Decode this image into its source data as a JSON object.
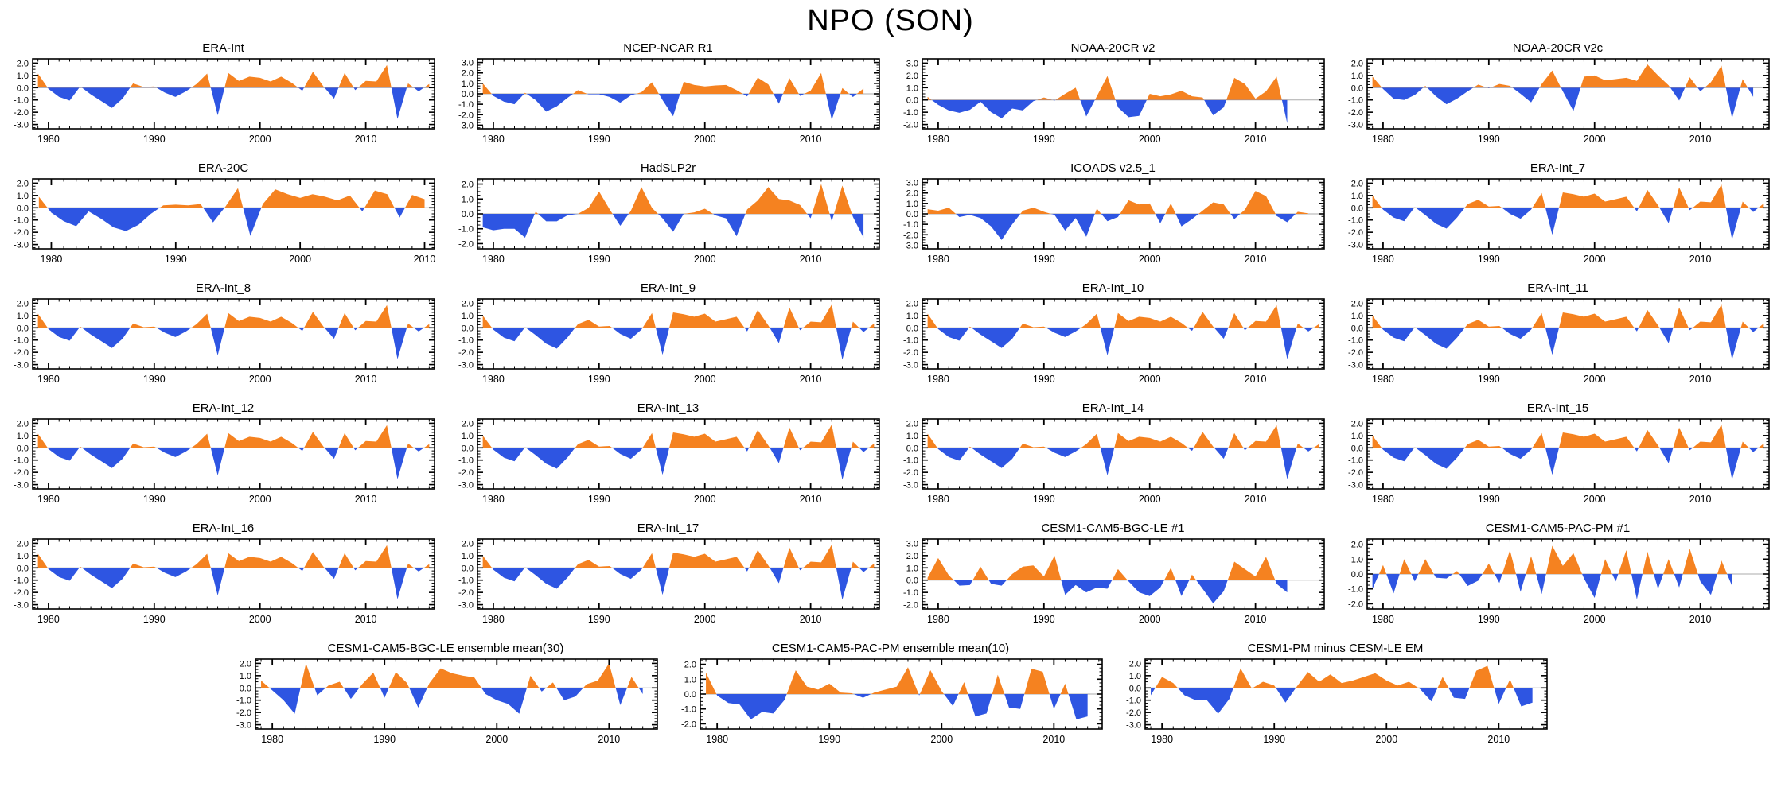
{
  "page": {
    "title": "NPO (SON)"
  },
  "colors": {
    "positive_fill": "#F58220",
    "negative_fill": "#2E55E2",
    "axis": "#000000",
    "zero_line": "#ABABAB"
  },
  "axis_defaults": {
    "x_start": 1978.5,
    "x_ticks": [
      1980,
      1990,
      2000,
      2010
    ],
    "x_minor_step": 1,
    "y_minor_step": 0.25,
    "start_year": 1979
  },
  "chart_data": [
    {
      "type": "area",
      "title": "ERA-Int",
      "x_end": 2016.5,
      "y_bot": -3.35,
      "y_top": 2.35,
      "yticks": [
        2,
        1,
        0,
        -1,
        -2,
        -3
      ],
      "values": [
        1.15,
        -0.1,
        -0.75,
        -1.05,
        0.1,
        -0.55,
        -1.1,
        -1.65,
        -0.9,
        0.35,
        0.05,
        0.1,
        -0.4,
        -0.75,
        -0.3,
        0.3,
        1.15,
        -2.25,
        1.2,
        0.55,
        0.9,
        0.8,
        0.5,
        0.9,
        0.4,
        -0.25,
        1.3,
        0.1,
        -0.9,
        1.2,
        -0.2,
        0.55,
        0.5,
        1.85,
        -2.55,
        0.35,
        -0.3,
        0.3
      ]
    },
    {
      "type": "area",
      "title": "NCEP-NCAR R1",
      "x_end": 2016.5,
      "y_bot": -3.35,
      "y_top": 3.35,
      "yticks": [
        3,
        2,
        1,
        0,
        -1,
        -2,
        -3
      ],
      "values": [
        1.0,
        -0.2,
        -0.75,
        -1.0,
        0.1,
        -0.6,
        -1.7,
        -1.2,
        -0.4,
        0.35,
        -0.05,
        -0.05,
        -0.3,
        -0.85,
        -0.15,
        0.15,
        1.1,
        -0.6,
        -2.15,
        1.15,
        0.85,
        0.7,
        0.8,
        0.85,
        0.35,
        -0.25,
        1.55,
        0.9,
        -0.95,
        1.5,
        -0.2,
        0.3,
        2.0,
        -2.5,
        0.55,
        -0.3,
        0.5
      ]
    },
    {
      "type": "area",
      "title": "NOAA-20CR v2",
      "x_end": 2016.5,
      "y_bot": -2.35,
      "y_top": 3.35,
      "yticks": [
        3,
        2,
        1,
        0,
        -1,
        -2
      ],
      "values": [
        0.25,
        -0.4,
        -0.85,
        -1.05,
        -0.8,
        -0.15,
        -1.0,
        -1.5,
        -0.7,
        -0.85,
        -0.1,
        0.2,
        -0.05,
        0.5,
        1.0,
        -1.35,
        0.3,
        1.95,
        -0.6,
        -1.4,
        -1.3,
        0.5,
        0.3,
        0.45,
        0.75,
        0.3,
        0.2,
        -1.25,
        -0.6,
        1.8,
        1.3,
        0.1,
        0.7,
        1.9,
        -1.9
      ]
    },
    {
      "type": "area",
      "title": "NOAA-20CR v2c",
      "x_end": 2016.5,
      "y_bot": -3.35,
      "y_top": 2.35,
      "yticks": [
        2,
        1,
        0,
        -1,
        -2,
        -3
      ],
      "values": [
        0.9,
        -0.1,
        -0.9,
        -1.0,
        -0.6,
        0.15,
        -0.7,
        -1.35,
        -0.9,
        -0.3,
        0.25,
        -0.05,
        0.3,
        0.15,
        -0.5,
        -1.2,
        0.3,
        1.4,
        -0.3,
        -1.9,
        0.9,
        1.0,
        0.6,
        0.7,
        0.8,
        0.55,
        1.9,
        1.0,
        0.2,
        -1.05,
        0.85,
        -0.3,
        0.45,
        1.8,
        -2.5,
        0.7,
        -0.75
      ]
    },
    {
      "type": "area",
      "title": "ERA-20C",
      "x_end": 2010.8,
      "y_bot": -3.35,
      "y_top": 2.35,
      "yticks": [
        2,
        1,
        0,
        -1,
        -2,
        -3
      ],
      "values": [
        0.9,
        -0.4,
        -1.1,
        -1.5,
        -0.3,
        -0.9,
        -1.6,
        -1.9,
        -1.4,
        -0.5,
        0.2,
        0.25,
        0.2,
        0.3,
        -1.2,
        0.1,
        1.6,
        -2.3,
        0.3,
        1.5,
        1.1,
        0.8,
        1.1,
        0.9,
        0.6,
        1.0,
        -0.3,
        1.4,
        1.1,
        -0.8,
        1.05,
        0.7
      ]
    },
    {
      "type": "area",
      "title": "HadSLP2r",
      "x_end": 2016.5,
      "y_bot": -2.35,
      "y_top": 2.35,
      "yticks": [
        2,
        1,
        0,
        -1,
        -2
      ],
      "values": [
        -0.9,
        -1.1,
        -1.0,
        -1.0,
        -1.6,
        0.15,
        -0.5,
        -0.5,
        -0.1,
        0.0,
        0.4,
        1.5,
        0.3,
        -0.8,
        0.2,
        1.8,
        0.4,
        -0.3,
        -1.2,
        0.0,
        0.1,
        0.35,
        -0.1,
        -0.3,
        -1.5,
        0.3,
        0.9,
        1.8,
        1.0,
        0.9,
        0.6,
        -0.3,
        2.0,
        -0.5,
        1.9,
        -0.2,
        -1.6
      ]
    },
    {
      "type": "area",
      "title": "ICOADS v2.5_1",
      "x_end": 2016.5,
      "y_bot": -3.35,
      "y_top": 3.35,
      "yticks": [
        3,
        2,
        1,
        0,
        -1,
        -2,
        -3
      ],
      "values": [
        0.45,
        0.3,
        0.6,
        -0.3,
        -0.1,
        -0.4,
        -1.2,
        -2.5,
        -1.0,
        0.3,
        0.6,
        0.2,
        -0.1,
        -1.6,
        -0.4,
        -2.2,
        0.5,
        -0.7,
        -0.3,
        1.3,
        0.9,
        1.0,
        -0.9,
        1.0,
        -1.2,
        -0.5,
        0.3,
        1.1,
        0.9,
        -0.5,
        0.4,
        2.2,
        1.7,
        -0.2,
        -0.8,
        0.2,
        0.05
      ]
    },
    {
      "type": "area",
      "title": "ERA-Int_7",
      "x_end": 2016.5,
      "y_bot": -3.35,
      "y_top": 2.35,
      "yticks": [
        2,
        1,
        0,
        -1,
        -2,
        -3
      ],
      "values": [
        1.0,
        -0.15,
        -0.8,
        -1.1,
        0.05,
        -0.6,
        -1.3,
        -1.7,
        -0.8,
        0.3,
        0.65,
        0.1,
        0.15,
        -0.5,
        -0.9,
        -0.15,
        1.2,
        -2.2,
        1.25,
        1.1,
        0.9,
        1.15,
        0.5,
        0.7,
        0.9,
        -0.3,
        1.45,
        0.2,
        -1.25,
        1.65,
        -0.2,
        0.5,
        0.45,
        1.9,
        -2.6,
        0.5,
        -0.35,
        0.35
      ]
    },
    {
      "type": "area",
      "title": "ERA-Int_8",
      "x_end": 2016.5,
      "y_bot": -3.35,
      "y_top": 2.35,
      "yticks": [
        2,
        1,
        0,
        -1,
        -2,
        -3
      ],
      "values": [
        1.15,
        -0.1,
        -0.75,
        -1.05,
        0.1,
        -0.55,
        -1.1,
        -1.65,
        -0.9,
        0.35,
        0.05,
        0.1,
        -0.4,
        -0.75,
        -0.3,
        0.3,
        1.15,
        -2.25,
        1.2,
        0.55,
        0.9,
        0.8,
        0.5,
        0.9,
        0.4,
        -0.25,
        1.3,
        0.1,
        -0.9,
        1.2,
        -0.2,
        0.55,
        0.5,
        1.85,
        -2.55,
        0.35,
        -0.3,
        0.3
      ]
    },
    {
      "type": "area",
      "title": "ERA-Int_9",
      "x_end": 2016.5,
      "y_bot": -3.35,
      "y_top": 2.35,
      "yticks": [
        2,
        1,
        0,
        -1,
        -2,
        -3
      ],
      "values": [
        1.0,
        -0.15,
        -0.8,
        -1.1,
        0.05,
        -0.6,
        -1.3,
        -1.7,
        -0.8,
        0.3,
        0.65,
        0.1,
        0.15,
        -0.5,
        -0.9,
        -0.15,
        1.2,
        -2.2,
        1.25,
        1.1,
        0.9,
        1.15,
        0.5,
        0.7,
        0.9,
        -0.3,
        1.45,
        0.2,
        -1.25,
        1.65,
        -0.2,
        0.5,
        0.45,
        1.9,
        -2.6,
        0.5,
        -0.35,
        0.35
      ]
    },
    {
      "type": "area",
      "title": "ERA-Int_10",
      "x_end": 2016.5,
      "y_bot": -3.35,
      "y_top": 2.35,
      "yticks": [
        2,
        1,
        0,
        -1,
        -2,
        -3
      ],
      "values": [
        1.15,
        -0.1,
        -0.75,
        -1.05,
        0.1,
        -0.55,
        -1.1,
        -1.65,
        -0.9,
        0.35,
        0.05,
        0.1,
        -0.4,
        -0.75,
        -0.3,
        0.3,
        1.15,
        -2.25,
        1.2,
        0.55,
        0.9,
        0.8,
        0.5,
        0.9,
        0.4,
        -0.25,
        1.3,
        0.1,
        -0.9,
        1.2,
        -0.2,
        0.55,
        0.5,
        1.85,
        -2.55,
        0.35,
        -0.3,
        0.3
      ]
    },
    {
      "type": "area",
      "title": "ERA-Int_11",
      "x_end": 2016.5,
      "y_bot": -3.35,
      "y_top": 2.35,
      "yticks": [
        2,
        1,
        0,
        -1,
        -2,
        -3
      ],
      "values": [
        1.0,
        -0.15,
        -0.8,
        -1.1,
        0.05,
        -0.6,
        -1.3,
        -1.7,
        -0.8,
        0.3,
        0.65,
        0.1,
        0.15,
        -0.5,
        -0.9,
        -0.15,
        1.2,
        -2.2,
        1.25,
        1.1,
        0.9,
        1.15,
        0.5,
        0.7,
        0.9,
        -0.3,
        1.45,
        0.2,
        -1.25,
        1.65,
        -0.2,
        0.5,
        0.45,
        1.9,
        -2.6,
        0.5,
        -0.35,
        0.35
      ]
    },
    {
      "type": "area",
      "title": "ERA-Int_12",
      "x_end": 2016.5,
      "y_bot": -3.35,
      "y_top": 2.35,
      "yticks": [
        2,
        1,
        0,
        -1,
        -2,
        -3
      ],
      "values": [
        1.15,
        -0.1,
        -0.75,
        -1.05,
        0.1,
        -0.55,
        -1.1,
        -1.65,
        -0.9,
        0.35,
        0.05,
        0.1,
        -0.4,
        -0.75,
        -0.3,
        0.3,
        1.15,
        -2.25,
        1.2,
        0.55,
        0.9,
        0.8,
        0.5,
        0.9,
        0.4,
        -0.25,
        1.3,
        0.1,
        -0.9,
        1.2,
        -0.2,
        0.55,
        0.5,
        1.85,
        -2.55,
        0.35,
        -0.3,
        0.3
      ]
    },
    {
      "type": "area",
      "title": "ERA-Int_13",
      "x_end": 2016.5,
      "y_bot": -3.35,
      "y_top": 2.35,
      "yticks": [
        2,
        1,
        0,
        -1,
        -2,
        -3
      ],
      "values": [
        1.0,
        -0.15,
        -0.8,
        -1.1,
        0.05,
        -0.6,
        -1.3,
        -1.7,
        -0.8,
        0.3,
        0.65,
        0.1,
        0.15,
        -0.5,
        -0.9,
        -0.15,
        1.2,
        -2.2,
        1.25,
        1.1,
        0.9,
        1.15,
        0.5,
        0.7,
        0.9,
        -0.3,
        1.45,
        0.2,
        -1.25,
        1.65,
        -0.2,
        0.5,
        0.45,
        1.9,
        -2.6,
        0.5,
        -0.35,
        0.35
      ]
    },
    {
      "type": "area",
      "title": "ERA-Int_14",
      "x_end": 2016.5,
      "y_bot": -3.35,
      "y_top": 2.35,
      "yticks": [
        2,
        1,
        0,
        -1,
        -2,
        -3
      ],
      "values": [
        1.15,
        -0.1,
        -0.75,
        -1.05,
        0.1,
        -0.55,
        -1.1,
        -1.65,
        -0.9,
        0.35,
        0.05,
        0.1,
        -0.4,
        -0.75,
        -0.3,
        0.3,
        1.15,
        -2.25,
        1.2,
        0.55,
        0.9,
        0.8,
        0.5,
        0.9,
        0.4,
        -0.25,
        1.3,
        0.1,
        -0.9,
        1.2,
        -0.2,
        0.55,
        0.5,
        1.85,
        -2.55,
        0.35,
        -0.3,
        0.3
      ]
    },
    {
      "type": "area",
      "title": "ERA-Int_15",
      "x_end": 2016.5,
      "y_bot": -3.35,
      "y_top": 2.35,
      "yticks": [
        2,
        1,
        0,
        -1,
        -2,
        -3
      ],
      "values": [
        1.0,
        -0.15,
        -0.8,
        -1.1,
        0.05,
        -0.6,
        -1.3,
        -1.7,
        -0.8,
        0.3,
        0.65,
        0.1,
        0.15,
        -0.5,
        -0.9,
        -0.15,
        1.2,
        -2.2,
        1.25,
        1.1,
        0.9,
        1.15,
        0.5,
        0.7,
        0.9,
        -0.3,
        1.45,
        0.2,
        -1.25,
        1.65,
        -0.2,
        0.5,
        0.45,
        1.9,
        -2.6,
        0.5,
        -0.35,
        0.35
      ]
    },
    {
      "type": "area",
      "title": "ERA-Int_16",
      "x_end": 2016.5,
      "y_bot": -3.35,
      "y_top": 2.35,
      "yticks": [
        2,
        1,
        0,
        -1,
        -2,
        -3
      ],
      "values": [
        1.15,
        -0.1,
        -0.75,
        -1.05,
        0.1,
        -0.55,
        -1.1,
        -1.65,
        -0.9,
        0.35,
        0.05,
        0.1,
        -0.4,
        -0.75,
        -0.3,
        0.3,
        1.15,
        -2.25,
        1.2,
        0.55,
        0.9,
        0.8,
        0.5,
        0.9,
        0.4,
        -0.25,
        1.3,
        0.1,
        -0.9,
        1.2,
        -0.2,
        0.55,
        0.5,
        1.85,
        -2.55,
        0.35,
        -0.3,
        0.3
      ]
    },
    {
      "type": "area",
      "title": "ERA-Int_17",
      "x_end": 2016.5,
      "y_bot": -3.35,
      "y_top": 2.35,
      "yticks": [
        2,
        1,
        0,
        -1,
        -2,
        -3
      ],
      "values": [
        1.0,
        -0.15,
        -0.8,
        -1.1,
        0.05,
        -0.6,
        -1.3,
        -1.7,
        -0.8,
        0.3,
        0.65,
        0.1,
        0.15,
        -0.5,
        -0.9,
        -0.15,
        1.2,
        -2.2,
        1.25,
        1.1,
        0.9,
        1.15,
        0.5,
        0.7,
        0.9,
        -0.3,
        1.45,
        0.2,
        -1.25,
        1.65,
        -0.2,
        0.5,
        0.45,
        1.9,
        -2.6,
        0.5,
        -0.35,
        0.35
      ]
    },
    {
      "type": "area",
      "title": "CESM1-CAM5-BGC-LE #1",
      "x_end": 2016.5,
      "y_bot": -2.35,
      "y_top": 3.35,
      "yticks": [
        3,
        2,
        1,
        0,
        -1,
        -2
      ],
      "values": [
        0.2,
        1.8,
        0.4,
        -0.45,
        -0.4,
        1.1,
        -0.3,
        -0.45,
        0.5,
        1.1,
        1.2,
        0.3,
        2.0,
        -1.2,
        -0.4,
        -1.0,
        -0.6,
        -0.7,
        0.9,
        -0.1,
        -1.0,
        -1.3,
        -0.6,
        1.0,
        -1.3,
        0.45,
        -0.7,
        -1.9,
        -0.9,
        1.5,
        0.9,
        0.3,
        1.9,
        -0.3,
        -1.0
      ]
    },
    {
      "type": "area",
      "title": "CESM1-CAM5-PAC-PM #1",
      "x_end": 2016.5,
      "y_bot": -2.35,
      "y_top": 2.35,
      "yticks": [
        2,
        1,
        0,
        -1,
        -2
      ],
      "values": [
        -1.0,
        0.6,
        -1.3,
        1.0,
        -0.5,
        1.0,
        -0.25,
        -0.3,
        0.2,
        -0.8,
        -0.45,
        0.7,
        -0.6,
        1.6,
        -1.2,
        1.2,
        -1.35,
        1.9,
        0.55,
        1.4,
        -0.3,
        -1.6,
        1.0,
        -0.5,
        1.6,
        -1.7,
        1.5,
        -1.0,
        1.0,
        -0.9,
        1.7,
        -0.5,
        -1.4,
        0.9,
        -0.8
      ]
    },
    {
      "type": "area",
      "title": "CESM1-CAM5-BGC-LE ensemble mean(30)",
      "x_end": 2014.3,
      "y_bot": -3.35,
      "y_top": 2.35,
      "yticks": [
        2,
        1,
        0,
        -1,
        -2,
        -3
      ],
      "values": [
        0.6,
        -0.2,
        -1.0,
        -2.1,
        2.0,
        -0.6,
        0.2,
        0.5,
        -0.9,
        0.3,
        1.25,
        -0.8,
        1.3,
        0.4,
        -1.6,
        0.4,
        1.6,
        1.2,
        1.0,
        0.85,
        -0.5,
        -1.0,
        -1.3,
        -2.1,
        1.0,
        -0.3,
        0.45,
        -1.0,
        -0.7,
        0.3,
        0.6,
        2.0,
        -1.4,
        0.9,
        -0.5
      ]
    },
    {
      "type": "area",
      "title": "CESM1-CAM5-PAC-PM ensemble mean(10)",
      "x_end": 2014.3,
      "y_bot": -2.35,
      "y_top": 2.35,
      "yticks": [
        2,
        1,
        0,
        -1,
        -2
      ],
      "values": [
        1.45,
        -0.1,
        -0.6,
        -0.7,
        -1.7,
        -1.2,
        -1.3,
        -0.4,
        1.6,
        0.5,
        0.3,
        0.7,
        0.1,
        0.05,
        -0.25,
        0.1,
        0.3,
        0.5,
        1.8,
        -0.1,
        1.6,
        0.2,
        -0.8,
        0.8,
        -1.5,
        -1.3,
        1.3,
        -0.9,
        -1.0,
        1.7,
        1.5,
        -1.0,
        0.7,
        -1.7,
        -1.5
      ]
    },
    {
      "type": "area",
      "title": "CESM1-PM minus CESM-LE EM",
      "x_end": 2014.3,
      "y_bot": -3.35,
      "y_top": 2.35,
      "yticks": [
        2,
        1,
        0,
        -1,
        -2,
        -3
      ],
      "values": [
        -0.6,
        0.9,
        0.4,
        -0.6,
        -1.0,
        -1.0,
        -2.1,
        -0.9,
        1.6,
        -0.05,
        0.5,
        0.2,
        -1.2,
        0.1,
        1.3,
        0.5,
        1.1,
        0.4,
        0.6,
        0.9,
        1.2,
        0.6,
        0.2,
        0.5,
        -0.1,
        -1.1,
        0.9,
        -0.8,
        -0.9,
        1.4,
        1.8,
        -1.3,
        0.7,
        -1.5,
        -1.2
      ]
    }
  ]
}
